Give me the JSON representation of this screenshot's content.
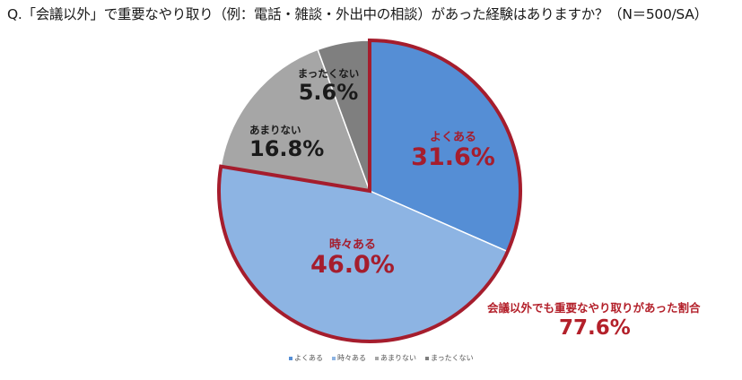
{
  "title": "Q.「会議以外」で重要なやり取り（例：電話・雑談・外出中の相談）があった経験はありますか？（N＝500/SA）",
  "chart_data": {
    "type": "pie",
    "title": "Q.「会議以外」で重要なやり取り（例：電話・雑談・外出中の相談）があった経験はありますか？（N＝500/SA）",
    "categories": [
      "よくある",
      "時々ある",
      "あまりない",
      "まったくない"
    ],
    "values": [
      31.6,
      46.0,
      16.8,
      5.6
    ],
    "colors": [
      "#558ed5",
      "#8db4e3",
      "#a6a6a6",
      "#7f7f7f"
    ],
    "start_angle": "12 o'clock, clockwise",
    "highlight": {
      "segments": [
        "よくある",
        "時々ある"
      ],
      "outline_color": "#a51d2d"
    },
    "annotation": {
      "text": "会議以外でも重要なやり取りがあった割合",
      "value": "77.6%"
    },
    "legend_position": "bottom"
  },
  "labels": [
    {
      "name": "よくある",
      "value": "31.6%"
    },
    {
      "name": "時々ある",
      "value": "46.0%"
    },
    {
      "name": "あまりない",
      "value": "16.8%"
    },
    {
      "name": "まったくない",
      "value": "5.6%"
    }
  ],
  "callout": {
    "text": "会議以外でも重要なやり取りがあった割合",
    "value": "77.6%"
  },
  "legend": [
    {
      "label": "よくある",
      "color": "#558ed5"
    },
    {
      "label": "時々ある",
      "color": "#8db4e3"
    },
    {
      "label": "あまりない",
      "color": "#a6a6a6"
    },
    {
      "label": "まったくない",
      "color": "#7f7f7f"
    }
  ]
}
